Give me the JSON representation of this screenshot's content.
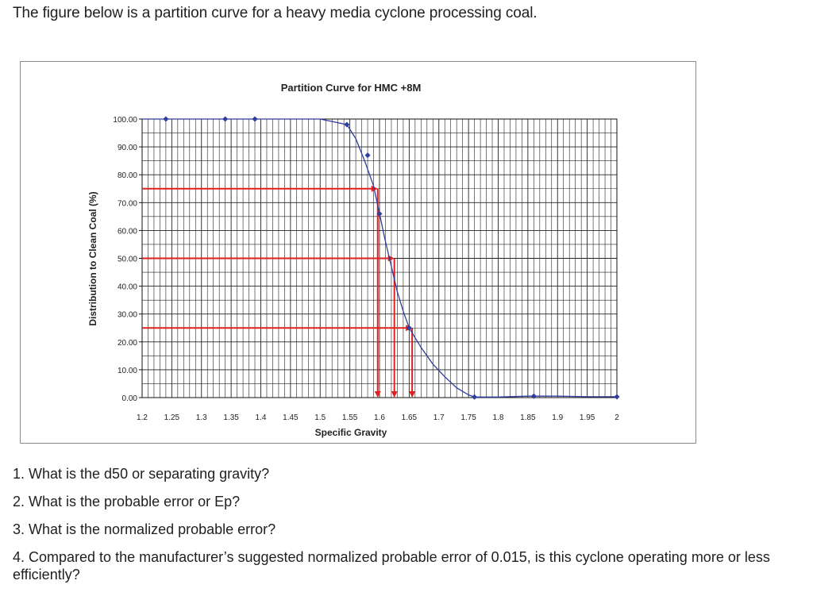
{
  "intro": "The figure below is a partition curve for a heavy media cyclone processing coal.",
  "questions": [
    "1. What is the d50 or separating gravity?",
    "2. What is the probable error or Ep?",
    "3. What is the normalized probable error?",
    "4. Compared to the manufacturer’s suggested normalized probable error of 0.015, is this cyclone operating more or less efficiently?"
  ],
  "colors": {
    "curve": "#2e3d9e",
    "guide": "#e0201e",
    "grid": "#222222",
    "frame": "#8a8a8a"
  },
  "chart_data": {
    "type": "line",
    "title": "Partition Curve for HMC +8M",
    "xlabel": "Specific Gravity",
    "ylabel": "Distribution to Clean Coal (%)",
    "xlim": [
      1.2,
      2.0
    ],
    "ylim": [
      0,
      100
    ],
    "x_ticks": [
      "1.2",
      "1.25",
      "1.3",
      "1.35",
      "1.4",
      "1.45",
      "1.5",
      "1.55",
      "1.6",
      "1.65",
      "1.7",
      "1.75",
      "1.8",
      "1.85",
      "1.9",
      "1.95",
      "2"
    ],
    "y_ticks": [
      "0.00",
      "10.00",
      "20.00",
      "30.00",
      "40.00",
      "50.00",
      "60.00",
      "70.00",
      "80.00",
      "90.00",
      "100.00"
    ],
    "grid": true,
    "series": [
      {
        "x": [
          1.2,
          1.24,
          1.3,
          1.35,
          1.4,
          1.45,
          1.5,
          1.545,
          1.56,
          1.575,
          1.59,
          1.6,
          1.61,
          1.62,
          1.63,
          1.64,
          1.65,
          1.67,
          1.69,
          1.71,
          1.73,
          1.75,
          1.76,
          1.8,
          1.85,
          1.9,
          1.95,
          2.0
        ],
        "y": [
          100,
          100,
          100,
          100,
          100,
          100,
          100,
          98,
          93,
          85,
          76,
          66,
          56,
          47,
          38,
          31,
          25,
          18,
          12,
          7.5,
          3.5,
          1,
          0.2,
          0.2,
          0.5,
          0.5,
          0.3,
          0.3
        ],
        "markers_x": [
          1.24,
          1.34,
          1.39,
          1.545,
          1.58,
          1.6,
          1.65,
          1.76,
          1.86,
          2.0
        ],
        "markers_y": [
          100,
          100,
          100,
          98,
          87,
          66,
          25,
          0.2,
          0.5,
          0.3
        ]
      }
    ],
    "guides": [
      {
        "y": 75,
        "x": 1.597
      },
      {
        "y": 50,
        "x": 1.625
      },
      {
        "y": 25,
        "x": 1.655
      }
    ]
  }
}
